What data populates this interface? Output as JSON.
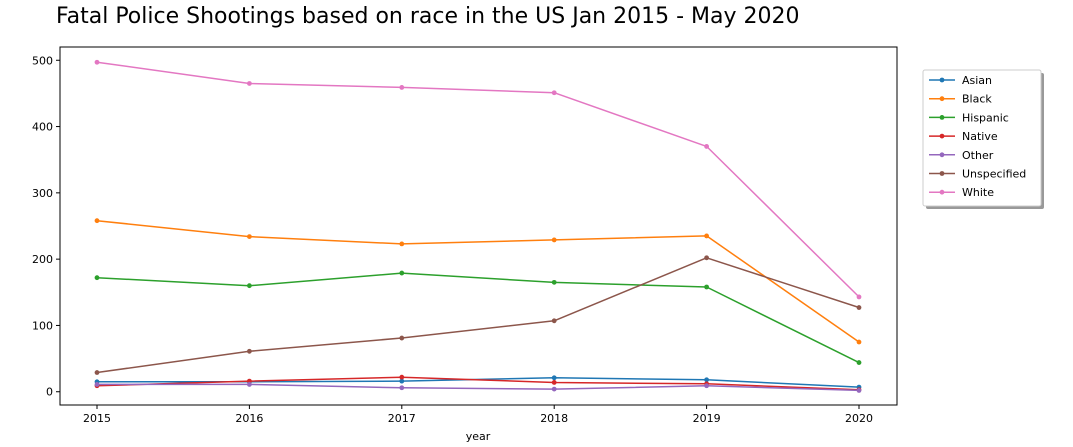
{
  "chart_data": {
    "type": "line",
    "title": "Fatal Police Shootings based on race in the US Jan 2015 - May 2020",
    "xlabel": "year",
    "ylabel": "",
    "x": [
      "2015",
      "2016",
      "2017",
      "2018",
      "2019",
      "2020"
    ],
    "ylim": [
      -20,
      520
    ],
    "yticks": [
      0,
      100,
      200,
      300,
      400,
      500
    ],
    "grid": false,
    "legend_position": "outside-right-top",
    "series": [
      {
        "name": "Asian",
        "color": "#1f77b4",
        "values": [
          15,
          15,
          16,
          21,
          18,
          7
        ]
      },
      {
        "name": "Black",
        "color": "#ff7f0e",
        "values": [
          258,
          234,
          223,
          229,
          235,
          75
        ]
      },
      {
        "name": "Hispanic",
        "color": "#2ca02c",
        "values": [
          172,
          160,
          179,
          165,
          158,
          44
        ]
      },
      {
        "name": "Native",
        "color": "#d62728",
        "values": [
          9,
          16,
          22,
          14,
          12,
          3
        ]
      },
      {
        "name": "Other",
        "color": "#9467bd",
        "values": [
          11,
          11,
          6,
          4,
          9,
          2
        ]
      },
      {
        "name": "Unspecified",
        "color": "#8c564b",
        "values": [
          29,
          61,
          81,
          107,
          202,
          127
        ]
      },
      {
        "name": "White",
        "color": "#e377c2",
        "values": [
          497,
          465,
          459,
          451,
          370,
          143
        ]
      }
    ]
  }
}
